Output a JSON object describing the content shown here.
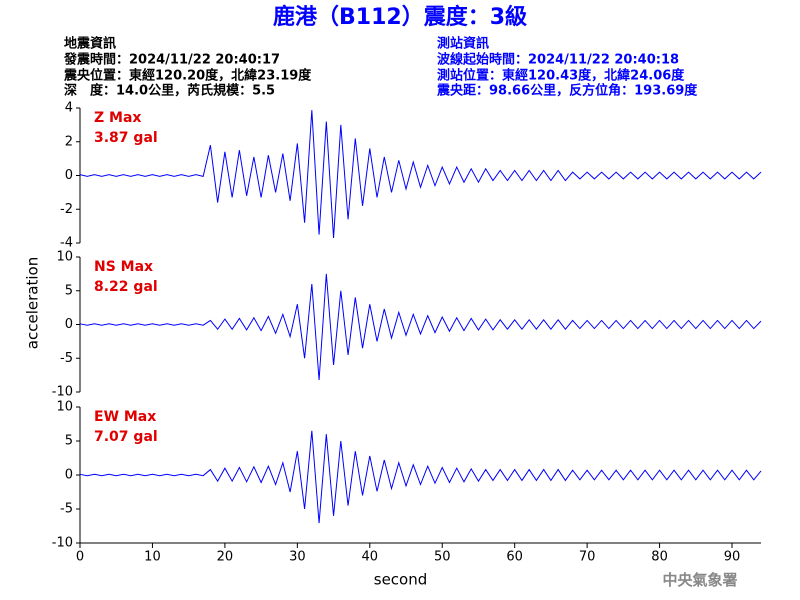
{
  "header": {
    "title": "鹿港（B112）震度：3級",
    "left": [
      "地震資訊",
      "發震時間：2024/11/22 20:40:17",
      "震央位置：東經120.20度，北緯23.19度",
      "深　度：14.0公里，芮氏規模：5.5"
    ],
    "right": [
      "測站資訊",
      "波線起始時間：2024/11/22 20:40:18",
      "測站位置：東經120.43度，北緯24.06度",
      "震央距：98.66公里，反方位角：193.69度"
    ],
    "y_label": "acceleration",
    "credit": "中央氣象署"
  },
  "chart_data": [
    {
      "type": "line",
      "annotation": [
        "Z Max",
        "3.87 gal"
      ],
      "color": "#0000ff",
      "ylim": [
        -4,
        4
      ],
      "yticks": [
        -4,
        -2,
        0,
        2,
        4
      ],
      "xlim": [
        0,
        94
      ],
      "x": [
        0,
        1,
        2,
        3,
        4,
        5,
        6,
        7,
        8,
        9,
        10,
        11,
        12,
        13,
        14,
        15,
        16,
        17,
        18,
        19,
        20,
        21,
        22,
        23,
        24,
        25,
        26,
        27,
        28,
        29,
        30,
        31,
        32,
        33,
        34,
        35,
        36,
        37,
        38,
        39,
        40,
        41,
        42,
        43,
        44,
        45,
        46,
        47,
        48,
        49,
        50,
        51,
        52,
        53,
        54,
        55,
        56,
        57,
        58,
        59,
        60,
        61,
        62,
        63,
        64,
        65,
        66,
        67,
        68,
        69,
        70,
        71,
        72,
        73,
        74,
        75,
        76,
        77,
        78,
        79,
        80,
        81,
        82,
        83,
        84,
        85,
        86,
        87,
        88,
        89,
        90,
        91,
        92,
        93,
        94
      ],
      "values": [
        0.05,
        -0.05,
        0.05,
        -0.05,
        0.05,
        -0.05,
        0.05,
        -0.05,
        0.05,
        -0.05,
        0.05,
        -0.05,
        0.05,
        -0.05,
        0.05,
        -0.05,
        0.05,
        -0.05,
        1.8,
        -1.6,
        1.4,
        -1.3,
        1.5,
        -1.2,
        1.1,
        -1.3,
        1.2,
        -1.0,
        1.3,
        -1.5,
        1.9,
        -2.8,
        3.87,
        -3.5,
        3.2,
        -3.7,
        3.0,
        -2.6,
        2.2,
        -1.8,
        1.6,
        -1.3,
        1.1,
        -1.0,
        0.9,
        -0.8,
        0.8,
        -0.7,
        0.6,
        -0.6,
        0.5,
        -0.5,
        0.5,
        -0.4,
        0.4,
        -0.4,
        0.4,
        -0.3,
        0.3,
        -0.3,
        0.3,
        -0.3,
        0.3,
        -0.3,
        0.3,
        -0.3,
        0.3,
        -0.3,
        0.2,
        -0.2,
        0.2,
        -0.2,
        0.2,
        -0.2,
        0.2,
        -0.2,
        0.2,
        -0.2,
        0.2,
        -0.2,
        0.2,
        -0.2,
        0.2,
        -0.2,
        0.2,
        -0.2,
        0.2,
        -0.2,
        0.2,
        -0.2,
        0.2,
        -0.2,
        0.2,
        -0.2,
        0.2
      ]
    },
    {
      "type": "line",
      "annotation": [
        "NS Max",
        "8.22 gal"
      ],
      "color": "#0000ff",
      "ylim": [
        -10,
        10
      ],
      "yticks": [
        -10,
        -5,
        0,
        5,
        10
      ],
      "xlim": [
        0,
        94
      ],
      "x": [
        0,
        1,
        2,
        3,
        4,
        5,
        6,
        7,
        8,
        9,
        10,
        11,
        12,
        13,
        14,
        15,
        16,
        17,
        18,
        19,
        20,
        21,
        22,
        23,
        24,
        25,
        26,
        27,
        28,
        29,
        30,
        31,
        32,
        33,
        34,
        35,
        36,
        37,
        38,
        39,
        40,
        41,
        42,
        43,
        44,
        45,
        46,
        47,
        48,
        49,
        50,
        51,
        52,
        53,
        54,
        55,
        56,
        57,
        58,
        59,
        60,
        61,
        62,
        63,
        64,
        65,
        66,
        67,
        68,
        69,
        70,
        71,
        72,
        73,
        74,
        75,
        76,
        77,
        78,
        79,
        80,
        81,
        82,
        83,
        84,
        85,
        86,
        87,
        88,
        89,
        90,
        91,
        92,
        93,
        94
      ],
      "values": [
        0.1,
        -0.1,
        0.1,
        -0.1,
        0.1,
        -0.1,
        0.1,
        -0.1,
        0.1,
        -0.1,
        0.1,
        -0.1,
        0.1,
        -0.1,
        0.1,
        -0.1,
        0.1,
        -0.1,
        0.6,
        -0.7,
        0.8,
        -0.7,
        0.9,
        -0.8,
        1.0,
        -0.9,
        1.2,
        -1.3,
        1.5,
        -1.8,
        3.0,
        -5.0,
        6.0,
        -8.22,
        7.5,
        -6.0,
        5.0,
        -4.5,
        4.0,
        -3.5,
        3.0,
        -2.5,
        2.3,
        -2.0,
        1.8,
        -1.6,
        1.5,
        -1.4,
        1.3,
        -1.2,
        1.1,
        -1.0,
        1.0,
        -0.9,
        0.9,
        -0.8,
        0.8,
        -0.8,
        0.7,
        -0.7,
        0.7,
        -0.7,
        0.7,
        -0.7,
        0.7,
        -0.7,
        0.7,
        -0.7,
        0.6,
        -0.6,
        0.6,
        -0.6,
        0.6,
        -0.6,
        0.6,
        -0.6,
        0.6,
        -0.6,
        0.6,
        -0.6,
        0.6,
        -0.6,
        0.6,
        -0.6,
        0.6,
        -0.6,
        0.6,
        -0.6,
        0.6,
        -0.6,
        0.6,
        -0.6,
        0.6,
        -0.6,
        0.5
      ]
    },
    {
      "type": "line",
      "annotation": [
        "EW Max",
        "7.07 gal"
      ],
      "color": "#0000ff",
      "ylim": [
        -10,
        10
      ],
      "yticks": [
        -10,
        -5,
        0,
        5,
        10
      ],
      "xlim": [
        0,
        94
      ],
      "xticks": [
        0,
        10,
        20,
        30,
        40,
        50,
        60,
        70,
        80,
        90
      ],
      "x_label": "second",
      "x": [
        0,
        1,
        2,
        3,
        4,
        5,
        6,
        7,
        8,
        9,
        10,
        11,
        12,
        13,
        14,
        15,
        16,
        17,
        18,
        19,
        20,
        21,
        22,
        23,
        24,
        25,
        26,
        27,
        28,
        29,
        30,
        31,
        32,
        33,
        34,
        35,
        36,
        37,
        38,
        39,
        40,
        41,
        42,
        43,
        44,
        45,
        46,
        47,
        48,
        49,
        50,
        51,
        52,
        53,
        54,
        55,
        56,
        57,
        58,
        59,
        60,
        61,
        62,
        63,
        64,
        65,
        66,
        67,
        68,
        69,
        70,
        71,
        72,
        73,
        74,
        75,
        76,
        77,
        78,
        79,
        80,
        81,
        82,
        83,
        84,
        85,
        86,
        87,
        88,
        89,
        90,
        91,
        92,
        93,
        94
      ],
      "values": [
        0.1,
        -0.1,
        0.1,
        -0.1,
        0.1,
        -0.1,
        0.1,
        -0.1,
        0.1,
        -0.1,
        0.1,
        -0.1,
        0.1,
        -0.1,
        0.1,
        -0.1,
        0.1,
        -0.1,
        0.8,
        -0.9,
        1.0,
        -0.9,
        1.1,
        -1.0,
        1.2,
        -1.1,
        1.3,
        -1.4,
        1.8,
        -2.5,
        3.5,
        -5.0,
        6.5,
        -7.07,
        6.0,
        -6.0,
        5.0,
        -4.5,
        3.5,
        -3.0,
        2.8,
        -2.4,
        2.2,
        -2.0,
        1.8,
        -1.6,
        1.5,
        -1.4,
        1.3,
        -1.2,
        1.1,
        -1.1,
        1.0,
        -1.0,
        0.9,
        -0.9,
        0.8,
        -0.8,
        0.8,
        -0.8,
        0.8,
        -0.8,
        0.8,
        -0.8,
        0.8,
        -0.8,
        0.8,
        -0.8,
        0.7,
        -0.7,
        0.7,
        -0.7,
        0.7,
        -0.7,
        0.7,
        -0.7,
        0.7,
        -0.7,
        0.7,
        -0.7,
        0.7,
        -0.7,
        0.7,
        -0.7,
        0.7,
        -0.7,
        0.7,
        -0.7,
        0.7,
        -0.7,
        0.7,
        -0.7,
        0.7,
        -0.7,
        0.6
      ]
    }
  ]
}
